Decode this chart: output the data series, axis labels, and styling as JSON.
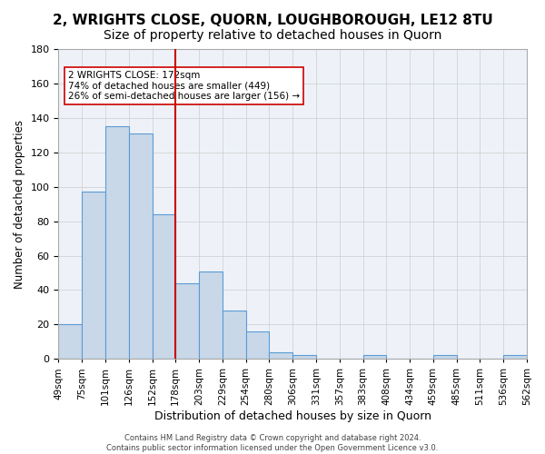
{
  "title": "2, WRIGHTS CLOSE, QUORN, LOUGHBOROUGH, LE12 8TU",
  "subtitle": "Size of property relative to detached houses in Quorn",
  "xlabel": "Distribution of detached houses by size in Quorn",
  "ylabel": "Number of detached properties",
  "bar_values": [
    20,
    97,
    135,
    131,
    84,
    44,
    51,
    28,
    16,
    4,
    2,
    0,
    0,
    2,
    0,
    0,
    2,
    0,
    0,
    2
  ],
  "bar_labels": [
    "49sqm",
    "75sqm",
    "101sqm",
    "126sqm",
    "152sqm",
    "178sqm",
    "203sqm",
    "229sqm",
    "254sqm",
    "280sqm",
    "306sqm",
    "331sqm",
    "357sqm",
    "383sqm",
    "408sqm",
    "434sqm",
    "459sqm",
    "485sqm",
    "511sqm",
    "536sqm",
    "562sqm"
  ],
  "bar_color": "#c8d8e8",
  "bar_edge_color": "#5b9bd5",
  "red_line_index": 5,
  "annotation_lines": [
    "2 WRIGHTS CLOSE: 172sqm",
    "74% of detached houses are smaller (449)",
    "26% of semi-detached houses are larger (156) →"
  ],
  "ylim": [
    0,
    180
  ],
  "yticks": [
    0,
    20,
    40,
    60,
    80,
    100,
    120,
    140,
    160,
    180
  ],
  "footer_lines": [
    "Contains HM Land Registry data © Crown copyright and database right 2024.",
    "Contains public sector information licensed under the Open Government Licence v3.0."
  ],
  "title_fontsize": 11,
  "subtitle_fontsize": 10,
  "annotation_box_color": "#ffffff",
  "annotation_box_edge": "#cc0000",
  "bg_color": "#eef2f8"
}
